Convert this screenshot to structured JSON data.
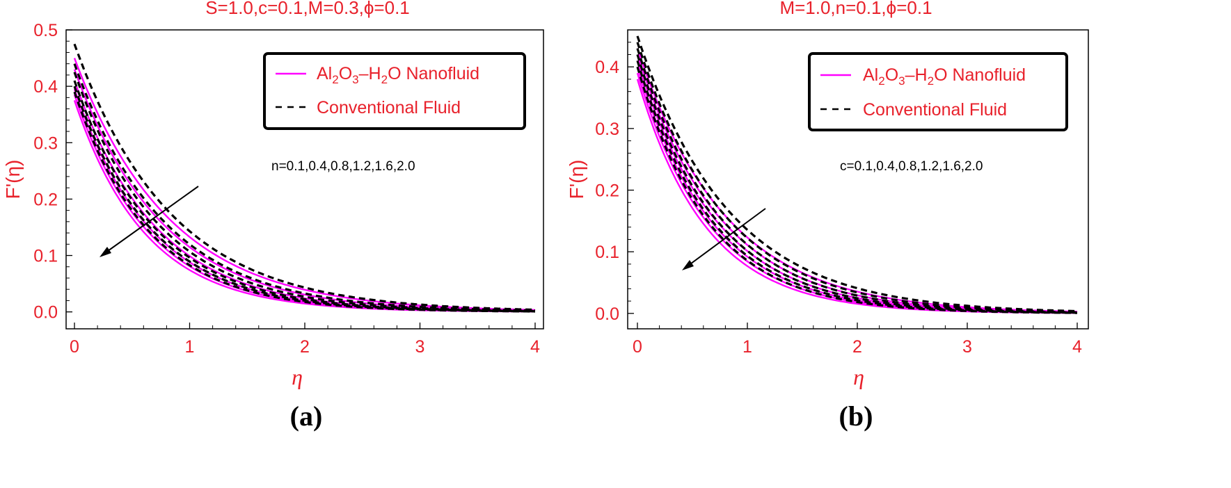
{
  "colors": {
    "nano": "#ff00ff",
    "conventional": "#000000",
    "text": "#e8212b",
    "axis": "#000000"
  },
  "chart_data": [
    {
      "type": "line",
      "panel_label": "(a)",
      "title": "S=1.0,c=0.1,M=0.3,ϕ=0.1",
      "xlabel": "η",
      "ylabel": "F'(η)",
      "xlim": [
        0,
        4
      ],
      "ylim": [
        -0.03,
        0.5
      ],
      "xticks": [
        "0",
        "1",
        "2",
        "3",
        "4"
      ],
      "yticks": [
        "0.0",
        "0.1",
        "0.2",
        "0.3",
        "0.4",
        "0.5"
      ],
      "legend": {
        "position": "top-right",
        "entries": [
          "Al2O3-H2O Nanofluid",
          "Conventional Fluid"
        ]
      },
      "annotation": "n=0.1,0.4,0.8,1.2,1.6,2.0",
      "arrow": {
        "from": [
          1.13,
          0.23
        ],
        "to": [
          0.24,
          0.1
        ]
      },
      "parameter_values": [
        "0.1",
        "0.4",
        "0.8",
        "1.2",
        "1.6",
        "2.0"
      ],
      "series": [
        {
          "name": "Al2O3-H2O Nanofluid",
          "style": "solid",
          "f0": [
            0.45,
            0.43,
            0.41,
            0.395,
            0.385,
            0.375
          ],
          "decay": [
            1.22,
            1.32,
            1.42,
            1.5,
            1.56,
            1.62
          ]
        },
        {
          "name": "Conventional Fluid",
          "style": "dashed",
          "f0": [
            0.475,
            0.44,
            0.425,
            0.41,
            0.4,
            0.39
          ],
          "decay": [
            1.2,
            1.3,
            1.38,
            1.45,
            1.5,
            1.55
          ]
        }
      ]
    },
    {
      "type": "line",
      "panel_label": "(b)",
      "title": "M=1.0,n=0.1,ϕ=0.1",
      "xlabel": "η",
      "ylabel": "F'(η)",
      "xlim": [
        0,
        4
      ],
      "ylim": [
        -0.025,
        0.46
      ],
      "xticks": [
        "0",
        "1",
        "2",
        "3",
        "4"
      ],
      "yticks": [
        "0.0",
        "0.1",
        "0.2",
        "0.3",
        "0.4"
      ],
      "legend": {
        "position": "top-right",
        "entries": [
          "Al2O3-H2O Nanofluid",
          "Conventional Fluid"
        ]
      },
      "annotation": "c=0.1,0.4,0.8,1.2,1.6,2.0",
      "arrow": {
        "from": [
          1.14,
          0.13
        ],
        "to": [
          0.4,
          0.05
        ]
      },
      "parameter_values": [
        "0.1",
        "0.4",
        "0.8",
        "1.2",
        "1.6",
        "2.0"
      ],
      "series": [
        {
          "name": "Al2O3-H2O Nanofluid",
          "style": "solid",
          "f0": [
            0.43,
            0.42,
            0.41,
            0.4,
            0.39,
            0.38
          ],
          "decay": [
            1.25,
            1.33,
            1.4,
            1.47,
            1.53,
            1.6
          ]
        },
        {
          "name": "Conventional Fluid",
          "style": "dashed",
          "f0": [
            0.45,
            0.44,
            0.43,
            0.42,
            0.41,
            0.4
          ],
          "decay": [
            1.2,
            1.28,
            1.35,
            1.42,
            1.48,
            1.54
          ]
        }
      ]
    }
  ]
}
